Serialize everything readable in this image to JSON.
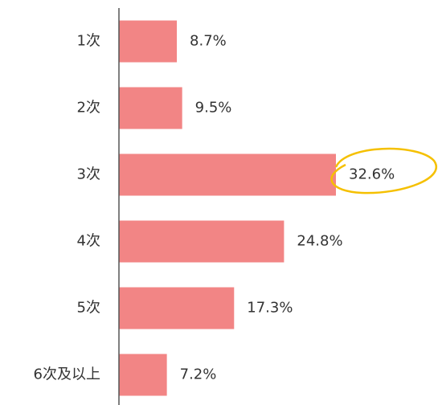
{
  "chart_data": {
    "type": "bar",
    "orientation": "horizontal",
    "categories": [
      "1次",
      "2次",
      "3次",
      "4次",
      "5次",
      "6次及以上"
    ],
    "values": [
      8.7,
      9.5,
      32.6,
      24.8,
      17.3,
      7.2
    ],
    "value_labels": [
      "8.7%",
      "9.5%",
      "32.6%",
      "24.8%",
      "17.3%",
      "7.2%"
    ],
    "color": "#f28585"
  }
}
